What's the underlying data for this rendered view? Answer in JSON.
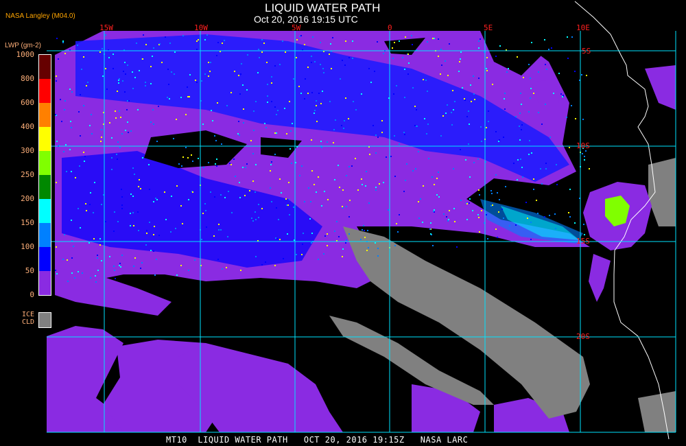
{
  "header": {
    "title": "LIQUID WATER PATH",
    "subtitle": "Oct 20, 2016 19:15 UTC",
    "credit": "NASA Langley (M04.0)"
  },
  "legend": {
    "label": "LWP (gm-2)",
    "ticks": [
      "1000",
      "800",
      "600",
      "400",
      "300",
      "250",
      "200",
      "150",
      "100",
      "50",
      "0"
    ],
    "colors": [
      "#660000",
      "#ff0000",
      "#ff8000",
      "#ffff00",
      "#80ff00",
      "#008800",
      "#00ffff",
      "#0080ff",
      "#0000ff",
      "#8a2be2"
    ],
    "ice_label_1": "ICE",
    "ice_label_2": "CLD",
    "ice_color": "#808080"
  },
  "grid": {
    "longitudes": [
      "15W",
      "10W",
      "5W",
      "0",
      "5E",
      "10E"
    ],
    "latitudes": [
      "5S",
      "10S",
      "15S",
      "20S"
    ],
    "line_color": "#00e5ff"
  },
  "footer": "MT10  LIQUID WATER PATH   OCT 20, 2016 19:15Z   NASA LARC"
}
